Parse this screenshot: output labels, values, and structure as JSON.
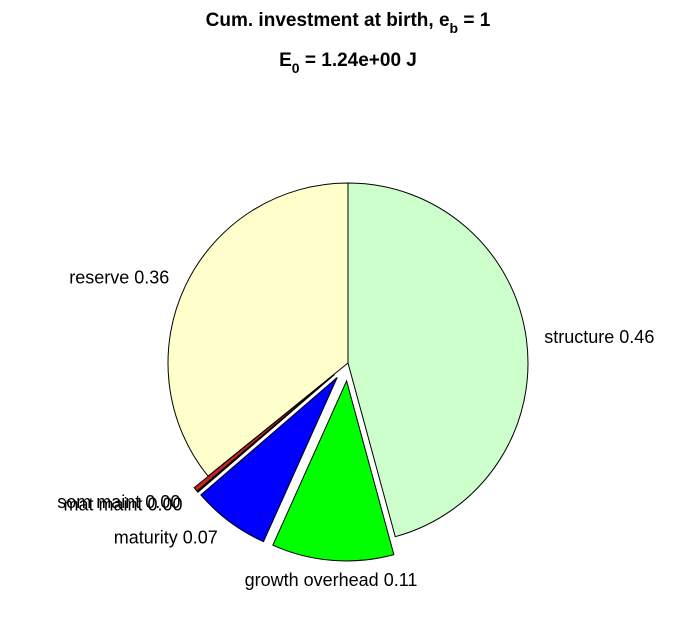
{
  "chart_data": {
    "type": "pie",
    "title": [
      "Cum. investment at birth, e",
      "b",
      " = 1"
    ],
    "subtitle": [
      "E",
      "0",
      " = 1.24e+00 J"
    ],
    "categories": [
      "structure",
      "growth overhead",
      "maturity",
      "mat maint",
      "som maint",
      "reserve"
    ],
    "values": [
      0.46,
      0.11,
      0.07,
      0.001,
      0.004,
      0.36
    ],
    "value_labels": [
      "0.46",
      "0.11",
      "0.07",
      "0.00",
      "0.00",
      "0.36"
    ],
    "colors": [
      "#ccffcc",
      "#00ff00",
      "#0000ff",
      "#000000",
      "#cc2020",
      "#ffffcc"
    ],
    "explode": [
      false,
      true,
      true,
      true,
      true,
      false
    ]
  }
}
